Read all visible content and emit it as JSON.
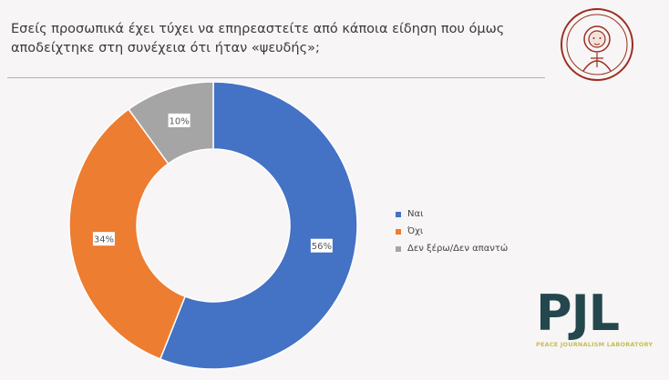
{
  "question": {
    "line1": "Εσείς προσωπικά έχει τύχει να επηρεαστείτε από κάποια είδηση που όμως",
    "line2": "αποδείχτηκε στη συνέχεια ότι ήταν «ψευδής»;"
  },
  "logos": {
    "university_seal_icon": "auth-seal-icon",
    "pjl_logo": {
      "letters": "PJL",
      "subtitle": "PEACE JOURNALISM LABORATORY"
    }
  },
  "colors": {
    "blue": "#4472c4",
    "orange": "#ed7d31",
    "gray": "#a5a5a5",
    "background": "#f7f5f5"
  },
  "chart_data": {
    "type": "pie",
    "style": "donut",
    "title": "",
    "categories": [
      "Ναι",
      "Όχι",
      "Δεν ξέρω/Δεν απαντώ"
    ],
    "values": [
      56,
      34,
      10
    ],
    "labels": [
      "56%",
      "34%",
      "10%"
    ],
    "colors": [
      "#4472c4",
      "#ed7d31",
      "#a5a5a5"
    ],
    "legend_position": "right"
  }
}
